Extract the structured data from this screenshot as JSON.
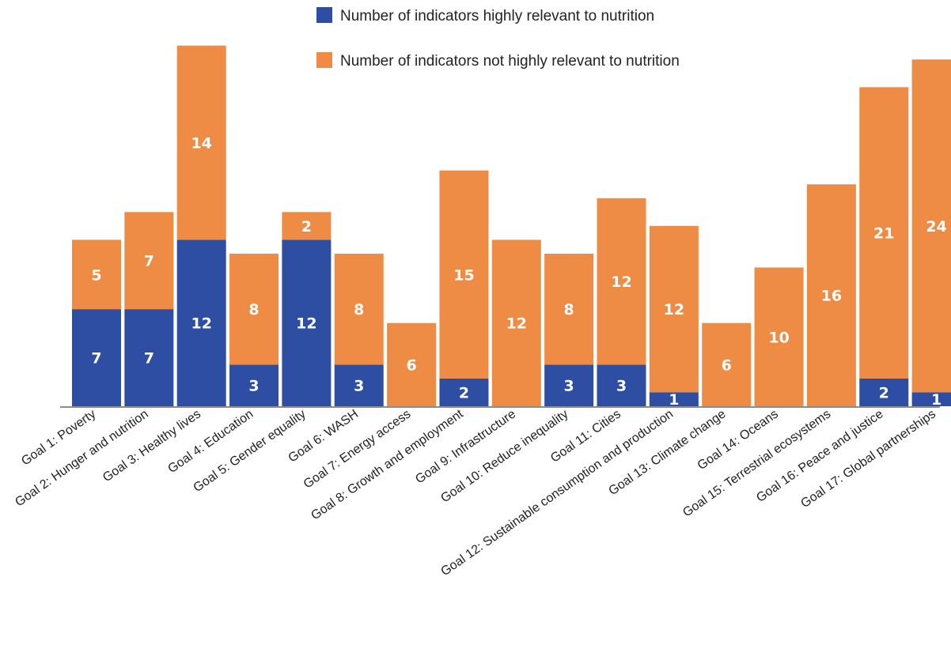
{
  "chart_data": {
    "type": "bar",
    "stacked": true,
    "categories": [
      "Goal 1: Poverty",
      "Goal 2: Hunger and nutrition",
      "Goal 3: Healthy lives",
      "Goal 4: Education",
      "Goal 5: Gender equality",
      "Goal 6: WASH",
      "Goal 7: Energy access",
      "Goal 8:  Growth and employment",
      "Goal 9: Infrastructure",
      "Goal 10: Reduce inequality",
      "Goal 11: Cities",
      "Goal 12: Sustainable consumption and production",
      "Goal 13: Climate change",
      "Goal 14: Oceans",
      "Goal 15: Terrestrial ecosystems",
      "Goal 16: Peace and justice",
      "Goal 17: Global partnerships"
    ],
    "series": [
      {
        "name": "Number of indicators highly relevant to nutrition",
        "color": "#2e4ea4",
        "values": [
          7,
          7,
          12,
          3,
          12,
          3,
          0,
          2,
          0,
          3,
          3,
          1,
          0,
          0,
          0,
          2,
          1
        ]
      },
      {
        "name": "Number of indicators not highly relevant to nutrition",
        "color": "#ee8b45",
        "values": [
          5,
          7,
          14,
          8,
          2,
          8,
          6,
          15,
          12,
          8,
          12,
          12,
          6,
          10,
          16,
          21,
          24
        ]
      }
    ],
    "title": "",
    "xlabel": "",
    "ylabel": "",
    "ylim": [
      0,
      26
    ],
    "grid": false,
    "legend_position": "top"
  }
}
